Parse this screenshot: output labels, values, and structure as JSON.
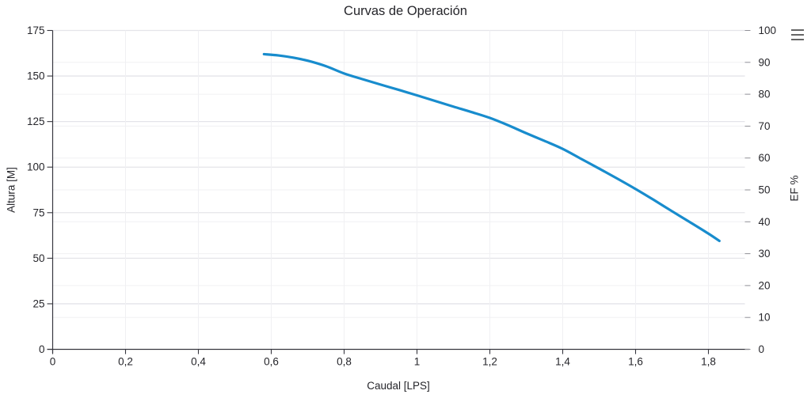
{
  "chart": {
    "title": "Curvas de Operación",
    "context_menu_icon": "hamburger-icon"
  },
  "chart_data": {
    "type": "line",
    "title": "Curvas de Operación",
    "xlabel": "Caudal [LPS]",
    "ylabel_left": "Altura [M]",
    "ylabel_right": "EF %",
    "xlim": [
      0,
      1.9
    ],
    "ylim_left": [
      0,
      175
    ],
    "ylim_right": [
      0,
      100
    ],
    "grid": true,
    "legend": false,
    "x_tick_values": [
      0,
      0.2,
      0.4,
      0.6,
      0.8,
      1,
      1.2,
      1.4,
      1.6,
      1.8
    ],
    "x_tick_labels": [
      "0",
      "0,2",
      "0,4",
      "0,6",
      "0,8",
      "1",
      "1,2",
      "1,4",
      "1,6",
      "1,8"
    ],
    "y_left_tick_values": [
      0,
      25,
      50,
      75,
      100,
      125,
      150,
      175
    ],
    "y_left_tick_labels": [
      "0",
      "25",
      "50",
      "75",
      "100",
      "125",
      "150",
      "175"
    ],
    "y_right_tick_values": [
      0,
      10,
      20,
      30,
      40,
      50,
      60,
      70,
      80,
      90,
      100
    ],
    "y_right_tick_labels": [
      "0",
      "10",
      "20",
      "30",
      "40",
      "50",
      "60",
      "70",
      "80",
      "90",
      "100"
    ],
    "series": [
      {
        "axis": "left",
        "color": "#188ccd",
        "points": [
          [
            0.58,
            162.0
          ],
          [
            0.62,
            161.3
          ],
          [
            0.66,
            160.1
          ],
          [
            0.7,
            158.4
          ],
          [
            0.75,
            155.4
          ],
          [
            0.8,
            151.4
          ],
          [
            0.85,
            148.3
          ],
          [
            0.9,
            145.3
          ],
          [
            0.95,
            142.4
          ],
          [
            1.0,
            139.4
          ],
          [
            1.05,
            136.3
          ],
          [
            1.1,
            133.2
          ],
          [
            1.15,
            130.2
          ],
          [
            1.2,
            127.0
          ],
          [
            1.25,
            123.0
          ],
          [
            1.3,
            118.6
          ],
          [
            1.35,
            114.4
          ],
          [
            1.4,
            110.0
          ],
          [
            1.45,
            104.6
          ],
          [
            1.5,
            99.2
          ],
          [
            1.55,
            93.7
          ],
          [
            1.6,
            88.0
          ],
          [
            1.65,
            82.0
          ],
          [
            1.7,
            75.8
          ],
          [
            1.75,
            69.7
          ],
          [
            1.8,
            63.5
          ],
          [
            1.83,
            59.5
          ]
        ]
      }
    ],
    "colors": {
      "series": "#188ccd",
      "grid_major": "#e4e4e9",
      "grid_minor": "#f0f0f3",
      "axis_line": "#37373f",
      "tick_text": "#26262b"
    }
  }
}
